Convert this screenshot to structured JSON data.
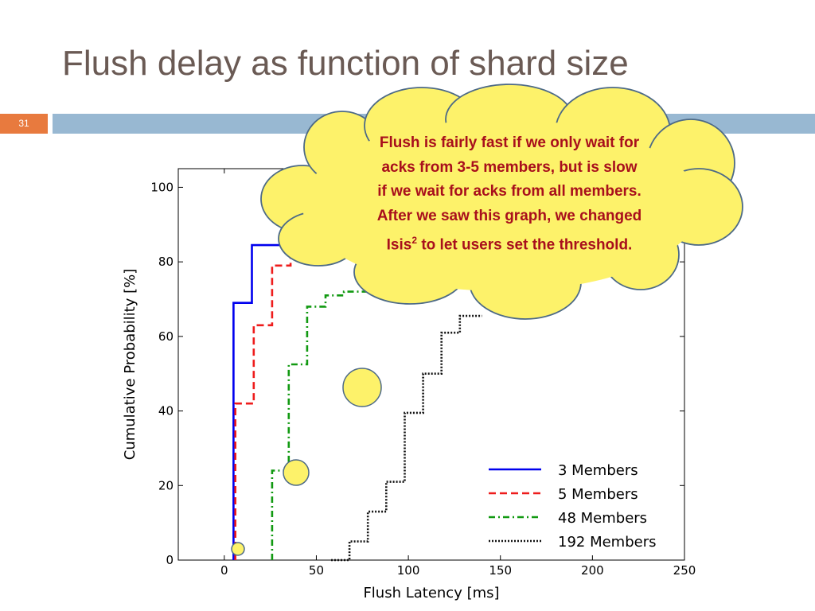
{
  "slide": {
    "title": "Flush delay as function of shard size",
    "number": "31"
  },
  "callout": {
    "line1": "Flush is fairly fast if we only wait for",
    "line2": "acks from 3-5 members, but is slow",
    "line3": "if we wait for acks from all members.",
    "line4": "After we saw this graph, we changed",
    "line5_pre": "Isis",
    "line5_sup": "2",
    "line5_post": " to let users set the threshold."
  },
  "colors": {
    "title": "#6a5a54",
    "slide_number_box": "#e87a3e",
    "header_bar": "#98b8d2",
    "cloud_fill": "#fdf26a",
    "callout_text": "#a80f1c"
  },
  "chart_data": {
    "type": "line",
    "step": true,
    "xlabel": "Flush Latency [ms]",
    "ylabel": "Cumulative Probability [%]",
    "xlim": [
      -25,
      250
    ],
    "ylim": [
      0,
      105
    ],
    "xticks": [
      0,
      50,
      100,
      150,
      200,
      250
    ],
    "yticks": [
      0,
      20,
      40,
      60,
      80,
      100
    ],
    "grid": false,
    "legend_position": "bottom-right",
    "series": [
      {
        "name": "3 Members",
        "color": "#0000ee",
        "dash": "solid",
        "x": [
          5,
          5,
          15,
          15,
          45
        ],
        "y": [
          0,
          69,
          69,
          84.5,
          84.5
        ]
      },
      {
        "name": "5 Members",
        "color": "#ee1c1c",
        "dash": "dashed",
        "x": [
          6,
          6,
          16,
          16,
          26,
          26,
          36,
          36,
          46
        ],
        "y": [
          0,
          42,
          42,
          63,
          63,
          79,
          79,
          84,
          84
        ]
      },
      {
        "name": "48 Members",
        "color": "#119911",
        "dash": "dashdot",
        "x": [
          26,
          26,
          35,
          35,
          45,
          45,
          55,
          55,
          65,
          65,
          80
        ],
        "y": [
          0,
          24,
          24,
          52.5,
          52.5,
          68,
          68,
          71,
          71,
          72,
          72
        ]
      },
      {
        "name": "192 Members",
        "color": "#111111",
        "dash": "dotted",
        "x": [
          58,
          68,
          68,
          78,
          78,
          88,
          88,
          98,
          98,
          108,
          108,
          118,
          118,
          128,
          128,
          140
        ],
        "y": [
          0,
          0,
          5,
          5,
          13,
          13,
          21,
          21,
          39.5,
          39.5,
          50,
          50,
          61,
          61,
          65.5,
          65.5
        ]
      }
    ]
  }
}
